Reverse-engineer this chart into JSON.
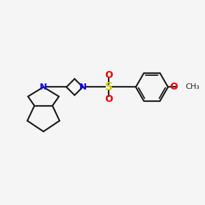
{
  "bg_color": "#f5f5f5",
  "bond_color": "#1a1a1a",
  "N_color": "#0000ee",
  "S_color": "#cccc00",
  "O_color": "#ee0000",
  "line_width": 1.6,
  "figsize": [
    3.0,
    3.0
  ],
  "dpi": 100,
  "xlim": [
    0.0,
    9.5
  ],
  "ylim": [
    2.5,
    7.5
  ]
}
